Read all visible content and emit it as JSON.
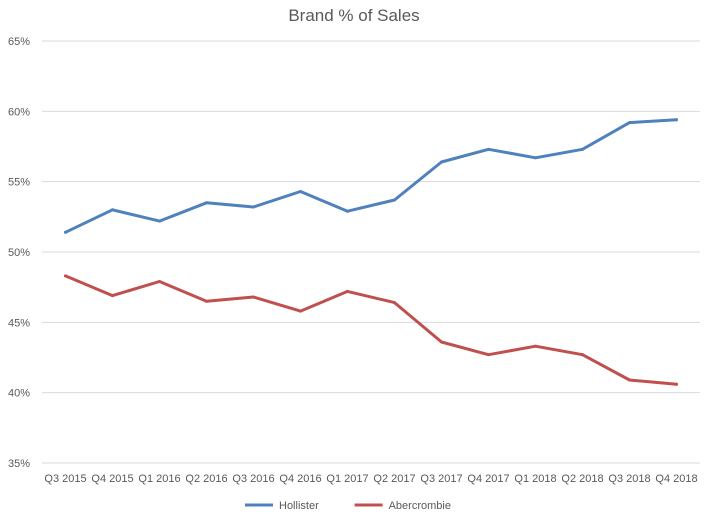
{
  "chart_data": {
    "type": "line",
    "title": "Brand % of Sales",
    "xlabel": "",
    "ylabel": "",
    "ylim": [
      35,
      65
    ],
    "y_ticks": [
      35,
      40,
      45,
      50,
      55,
      60,
      65
    ],
    "y_tick_labels": [
      "35%",
      "40%",
      "45%",
      "50%",
      "55%",
      "60%",
      "65%"
    ],
    "grid": true,
    "legend_position": "bottom",
    "categories": [
      "Q3 2015",
      "Q4 2015",
      "Q1 2016",
      "Q2 2016",
      "Q3 2016",
      "Q4 2016",
      "Q1 2017",
      "Q2 2017",
      "Q3 2017",
      "Q4 2017",
      "Q1 2018",
      "Q2 2018",
      "Q3 2018",
      "Q4 2018"
    ],
    "series": [
      {
        "name": "Hollister",
        "color": "#4f81bd",
        "values": [
          51.4,
          53.0,
          52.2,
          53.5,
          53.2,
          54.3,
          52.9,
          53.7,
          56.4,
          57.3,
          56.7,
          57.3,
          59.2,
          59.4
        ]
      },
      {
        "name": "Abercrombie",
        "color": "#c0504d",
        "values": [
          48.3,
          46.9,
          47.9,
          46.5,
          46.8,
          45.8,
          47.2,
          46.4,
          43.6,
          42.7,
          43.3,
          42.7,
          40.9,
          40.6
        ]
      }
    ]
  }
}
